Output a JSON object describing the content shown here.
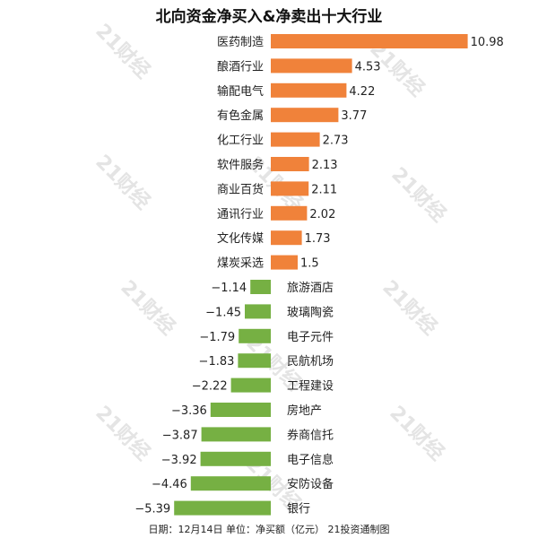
{
  "chart_data": {
    "type": "bar",
    "title": "北向资金净买入&净卖出十大行业",
    "footer": "日期：12月14日 单位：净买额（亿元） 21投资通制图",
    "watermark": "21财经",
    "categories": [
      "医药制造",
      "酿酒行业",
      "输配电气",
      "有色金属",
      "化工行业",
      "软件服务",
      "商业百货",
      "通讯行业",
      "文化传媒",
      "煤炭采选",
      "旅游酒店",
      "玻璃陶瓷",
      "电子元件",
      "民航机场",
      "工程建设",
      "房地产",
      "券商信托",
      "电子信息",
      "安防设备",
      "银行"
    ],
    "values": [
      10.98,
      4.53,
      4.22,
      3.77,
      2.73,
      2.13,
      2.11,
      2.02,
      1.73,
      1.5,
      -1.14,
      -1.45,
      -1.79,
      -1.83,
      -2.22,
      -3.36,
      -3.87,
      -3.92,
      -4.46,
      -5.39
    ],
    "value_labels": [
      "10.98",
      "4.53",
      "4.22",
      "3.77",
      "2.73",
      "2.13",
      "2.11",
      "2.02",
      "1.73",
      "1.5",
      "−1.14",
      "−1.45",
      "−1.79",
      "−1.83",
      "−2.22",
      "−3.36",
      "−3.87",
      "−3.92",
      "−4.46",
      "−5.39"
    ],
    "orientation": "horizontal",
    "colors": {
      "positive": "#F0823A",
      "negative": "#76B043"
    },
    "grid": false,
    "legend": "none"
  }
}
